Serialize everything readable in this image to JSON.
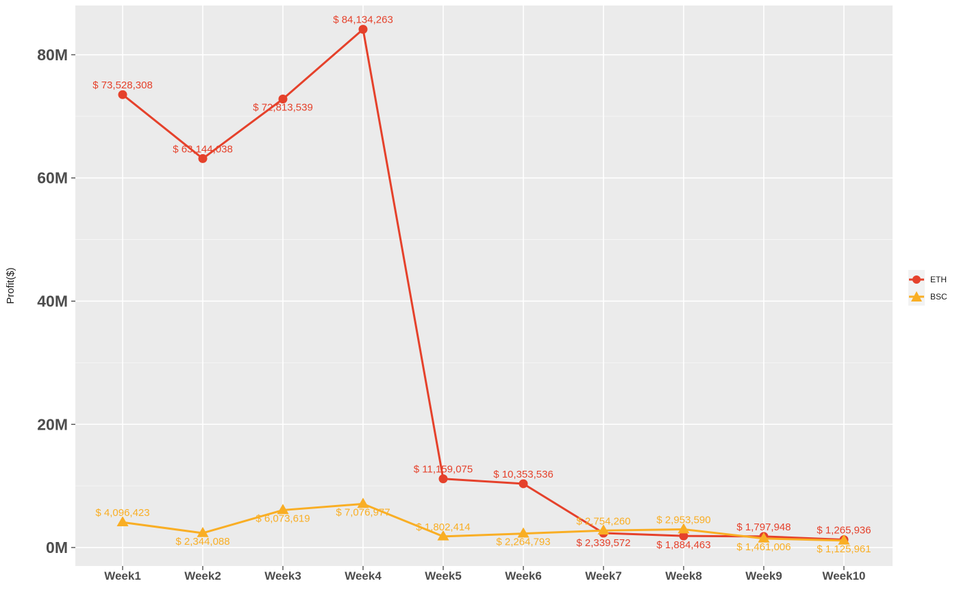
{
  "chart_data": {
    "type": "line",
    "title": "",
    "xlabel": "",
    "ylabel": "Profit($)",
    "categories": [
      "Week1",
      "Week2",
      "Week3",
      "Week4",
      "Week5",
      "Week6",
      "Week7",
      "Week8",
      "Week9",
      "Week10"
    ],
    "ylim": [
      -3000000,
      88000000
    ],
    "y_ticks": [
      0,
      20000000,
      40000000,
      60000000,
      80000000
    ],
    "y_tick_labels": [
      "0M",
      "20M",
      "40M",
      "60M",
      "80M"
    ],
    "grid": true,
    "legend_position": "right",
    "series": [
      {
        "name": "ETH",
        "marker": "circle",
        "color": "#e5412b",
        "values": [
          73528308,
          63144038,
          72813539,
          84134263,
          11159075,
          10353536,
          2339572,
          1884463,
          1797948,
          1265936
        ],
        "labels": [
          "$ 73,528,308",
          "$ 63,144,038",
          "$ 72,813,539",
          "$ 84,134,263",
          "$ 11,159,075",
          "$ 10,353,536",
          "$ 2,339,572",
          "$ 1,884,463",
          "$ 1,797,948",
          "$ 1,265,936"
        ]
      },
      {
        "name": "BSC",
        "marker": "triangle",
        "color": "#f9ae24",
        "values": [
          4096423,
          2344088,
          6073619,
          7076977,
          1802414,
          2264793,
          2754260,
          2953590,
          1461006,
          1125961
        ],
        "labels": [
          "$ 4,096,423",
          "$ 2,344,088",
          "$ 6,073,619",
          "$ 7,076,977",
          "$ 1,802,414",
          "$ 2,264,793",
          "$ 2,754,260",
          "$ 2,953,590",
          "$ 1,461,006",
          "$ 1,125,961"
        ]
      }
    ]
  }
}
